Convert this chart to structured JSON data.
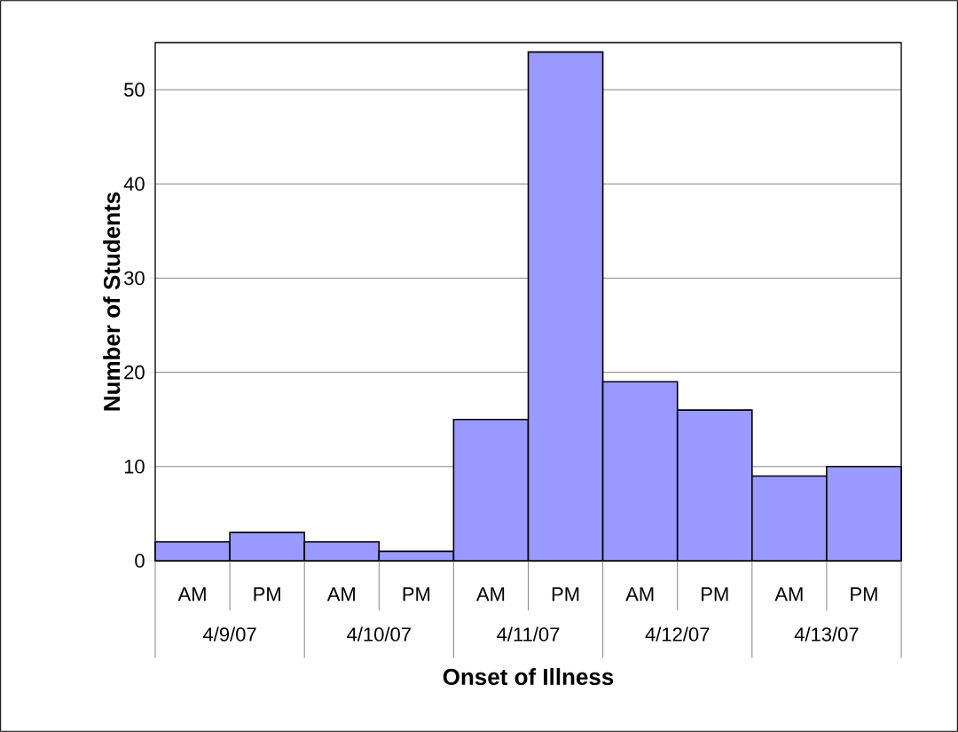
{
  "chart_data": {
    "type": "bar",
    "xlabel": "Onset of Illness",
    "ylabel": "Number of Students",
    "categories": [
      "AM",
      "PM",
      "AM",
      "PM",
      "AM",
      "PM",
      "AM",
      "PM",
      "AM",
      "PM"
    ],
    "values": [
      2,
      3,
      2,
      1,
      15,
      54,
      19,
      16,
      9,
      10
    ],
    "color": "#9999ff",
    "ylim": [
      0,
      55
    ],
    "yticks": [
      0,
      10,
      20,
      30,
      40,
      50
    ],
    "grid": "y",
    "annotations": [
      "4/9/07",
      "4/10/07",
      "4/11/07",
      "4/12/07",
      "4/13/07"
    ]
  }
}
